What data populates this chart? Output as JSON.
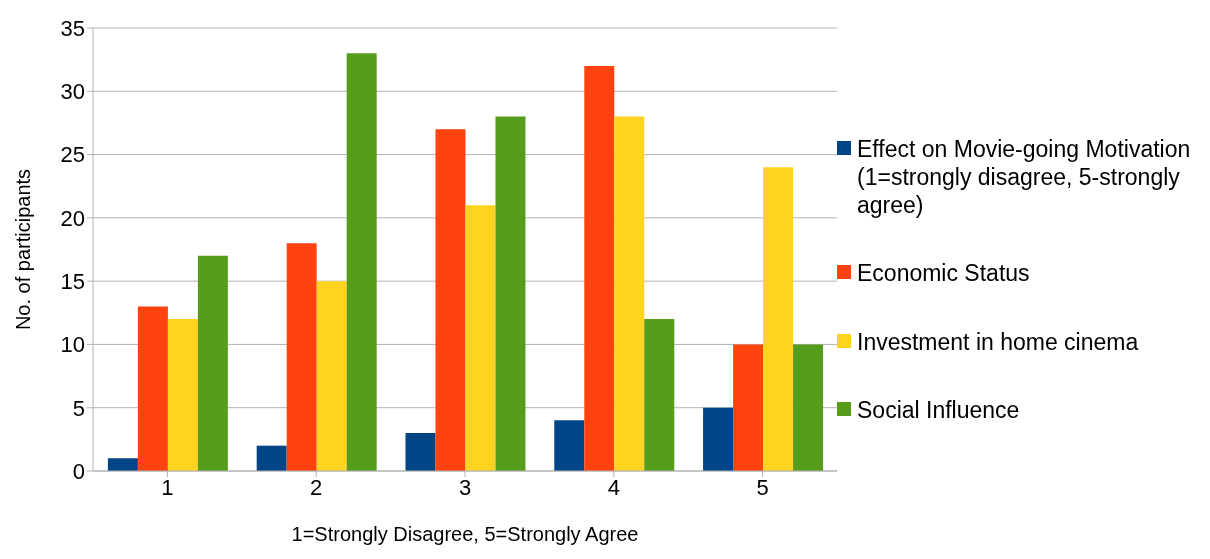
{
  "chart_data": {
    "type": "bar",
    "xlabel": "1=Strongly Disagree, 5=Strongly Agree",
    "ylabel": "No. of participants",
    "categories": [
      "1",
      "2",
      "3",
      "4",
      "5"
    ],
    "series": [
      {
        "name": "Effect on Movie-going Motivation (1=strongly disagree, 5-strongly agree)",
        "color": "#004586",
        "values": [
          1,
          2,
          3,
          4,
          5
        ]
      },
      {
        "name": "Economic Status",
        "color": "#ff420e",
        "values": [
          13,
          18,
          27,
          32,
          10
        ]
      },
      {
        "name": "Investment in home cinema",
        "color": "#ffd320",
        "values": [
          12,
          15,
          21,
          28,
          24
        ]
      },
      {
        "name": "Social Influence",
        "color": "#579d1c",
        "values": [
          17,
          33,
          28,
          12,
          10
        ]
      }
    ],
    "ylim": [
      0,
      35
    ],
    "yticks": [
      0,
      5,
      10,
      15,
      20,
      25,
      30,
      35
    ],
    "grid": "y",
    "legend": "right"
  }
}
